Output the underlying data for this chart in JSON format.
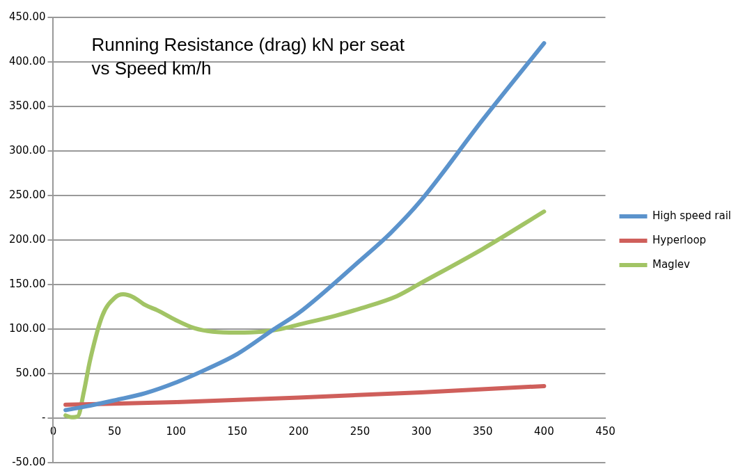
{
  "chart_data": {
    "type": "line",
    "title": "Running Resistance (drag) kN per seat\nvs Speed km/h",
    "xlim": [
      0,
      450
    ],
    "xticks": [
      0,
      50,
      100,
      150,
      200,
      250,
      300,
      350,
      400,
      450
    ],
    "ylim": [
      -50,
      450
    ],
    "yticks": [
      {
        "value": -50,
        "label": "-50.00"
      },
      {
        "value": 0,
        "label": "-"
      },
      {
        "value": 50,
        "label": "50.00"
      },
      {
        "value": 100,
        "label": "100.00"
      },
      {
        "value": 150,
        "label": "150.00"
      },
      {
        "value": 200,
        "label": "200.00"
      },
      {
        "value": 250,
        "label": "250.00"
      },
      {
        "value": 300,
        "label": "300.00"
      },
      {
        "value": 350,
        "label": "350.00"
      },
      {
        "value": 400,
        "label": "400.00"
      },
      {
        "value": 450,
        "label": "450.00"
      }
    ],
    "grid": "y",
    "legend": "right",
    "marker": "none",
    "line_style": "solid",
    "series": [
      {
        "name": "High speed rail",
        "color": "#5b93cc",
        "x": [
          10,
          30,
          50,
          75,
          100,
          125,
          150,
          180,
          200,
          250,
          275,
          300,
          350,
          400
        ],
        "values": [
          9,
          14,
          20,
          28,
          40,
          55,
          72,
          100,
          118,
          177,
          208,
          245,
          335,
          421
        ]
      },
      {
        "name": "Hyperloop",
        "color": "#cf5f5b",
        "x": [
          10,
          100,
          200,
          300,
          400
        ],
        "values": [
          15,
          18,
          23,
          29,
          36
        ]
      },
      {
        "name": "Maglev",
        "color": "#a2c465",
        "x": [
          10,
          15,
          20,
          25,
          30,
          40,
          50,
          57,
          65,
          75,
          85,
          100,
          115,
          130,
          150,
          170,
          185,
          200,
          230,
          250,
          280,
          300,
          350,
          400
        ],
        "values": [
          3,
          1,
          2,
          30,
          65,
          115,
          135,
          139,
          136,
          127,
          121,
          110,
          101,
          97,
          96,
          97,
          100,
          105,
          115,
          123,
          137,
          152,
          190,
          232
        ]
      }
    ]
  }
}
